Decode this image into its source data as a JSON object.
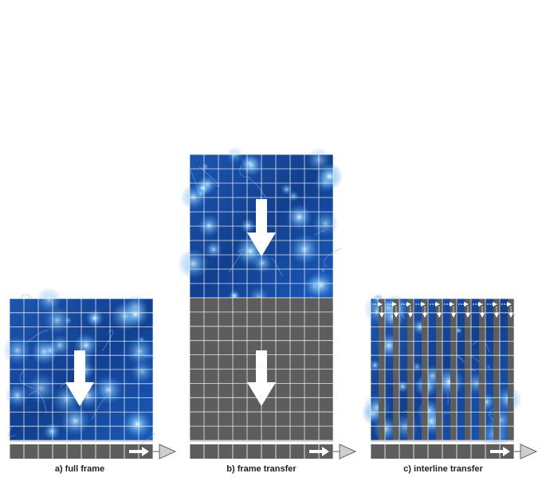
{
  "panels": [
    {
      "label": "a) full frame"
    },
    {
      "label": "b) frame transfer"
    },
    {
      "label": "c) interline transfer"
    }
  ]
}
